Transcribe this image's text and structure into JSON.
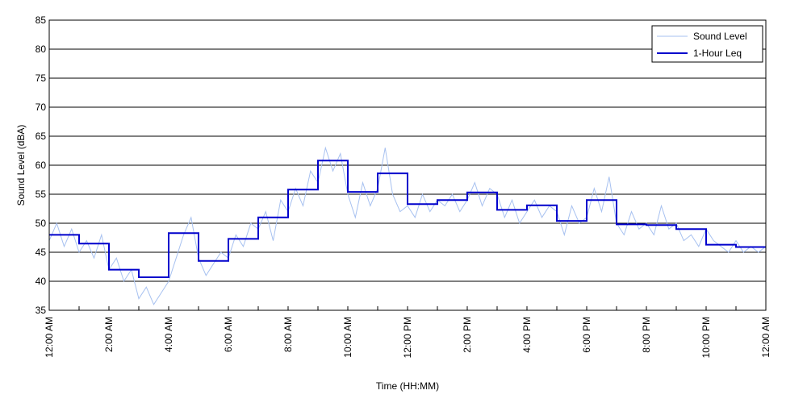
{
  "chart_data": {
    "type": "line",
    "title": "",
    "xlabel": "Time (HH:MM)",
    "ylabel": "Sound Level (dBA)",
    "ylim": [
      35,
      85
    ],
    "yticks": [
      35,
      40,
      45,
      50,
      55,
      60,
      65,
      70,
      75,
      80,
      85
    ],
    "xlim": [
      0,
      24
    ],
    "x_tick_hours": [
      0,
      2,
      4,
      6,
      8,
      10,
      12,
      14,
      16,
      18,
      20,
      22,
      24
    ],
    "x_tick_labels": [
      "12:00 AM",
      "2:00 AM",
      "4:00 AM",
      "6:00 AM",
      "8:00 AM",
      "10:00 AM",
      "12:00 PM",
      "2:00 PM",
      "4:00 PM",
      "6:00 PM",
      "8:00 PM",
      "10:00 PM",
      "12:00 AM"
    ],
    "grid": "horizontal",
    "legend_position": "top-right",
    "series": [
      {
        "name": "Sound Level",
        "color": "#a7c1f0",
        "x_hours": [
          0,
          0.25,
          0.5,
          0.75,
          1,
          1.25,
          1.5,
          1.75,
          2,
          2.25,
          2.5,
          2.75,
          3,
          3.25,
          3.5,
          3.75,
          4,
          4.25,
          4.5,
          4.75,
          5,
          5.25,
          5.5,
          5.75,
          6,
          6.25,
          6.5,
          6.75,
          7,
          7.25,
          7.5,
          7.75,
          8,
          8.25,
          8.5,
          8.75,
          9,
          9.25,
          9.5,
          9.75,
          10,
          10.25,
          10.5,
          10.75,
          11,
          11.25,
          11.5,
          11.75,
          12,
          12.25,
          12.5,
          12.75,
          13,
          13.25,
          13.5,
          13.75,
          14,
          14.25,
          14.5,
          14.75,
          15,
          15.25,
          15.5,
          15.75,
          16,
          16.25,
          16.5,
          16.75,
          17,
          17.25,
          17.5,
          17.75,
          18,
          18.25,
          18.5,
          18.75,
          19,
          19.25,
          19.5,
          19.75,
          20,
          20.25,
          20.5,
          20.75,
          21,
          21.25,
          21.5,
          21.75,
          22,
          22.25,
          22.5,
          22.75,
          23,
          23.25,
          23.5,
          23.75,
          24
        ],
        "values": [
          47,
          50,
          46,
          49,
          45,
          47,
          44,
          48,
          42,
          44,
          40,
          42,
          37,
          39,
          36,
          38,
          40,
          44,
          48,
          51,
          44,
          41,
          43,
          45,
          44,
          48,
          46,
          50,
          49,
          52,
          47,
          54,
          52,
          56,
          53,
          59,
          57,
          63,
          59,
          62,
          55,
          51,
          57,
          53,
          56,
          63,
          55,
          52,
          53,
          51,
          55,
          52,
          54,
          53,
          55,
          52,
          54,
          57,
          53,
          56,
          55,
          51,
          54,
          50,
          52,
          54,
          51,
          53,
          52,
          48,
          53,
          50,
          51,
          56,
          52,
          58,
          50,
          48,
          52,
          49,
          50,
          48,
          53,
          49,
          50,
          47,
          48,
          46,
          49,
          47,
          46,
          45,
          47,
          45,
          46,
          45,
          46
        ]
      },
      {
        "name": "1-Hour Leq",
        "color": "#0000cc",
        "step": true,
        "hour_starts": [
          0,
          1,
          2,
          3,
          4,
          5,
          6,
          7,
          8,
          9,
          10,
          11,
          12,
          13,
          14,
          15,
          16,
          17,
          18,
          19,
          20,
          21,
          22,
          23
        ],
        "values": [
          48,
          46.5,
          42,
          40.7,
          48.3,
          43.5,
          47.3,
          51,
          55.8,
          60.8,
          55.4,
          58.6,
          53.3,
          54,
          55.3,
          52.3,
          53.1,
          50.4,
          54,
          49.8,
          49.7,
          49,
          46.3,
          45.9
        ]
      }
    ]
  }
}
